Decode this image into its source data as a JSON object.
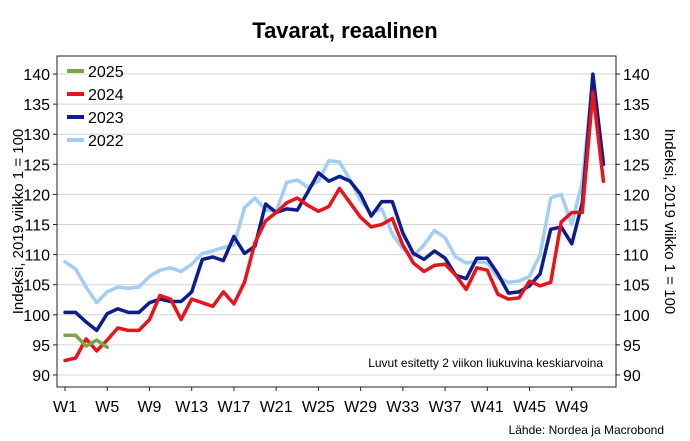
{
  "chart_data": {
    "type": "line",
    "title": "Tavarat, reaalinen",
    "ylabel_left": "Indeksi, 2019 viikko 1 = 100",
    "ylabel_right": "Indeksi, 2019 viikko 1 = 100",
    "ylim": [
      88,
      143
    ],
    "yticks": [
      90,
      95,
      100,
      105,
      110,
      115,
      120,
      125,
      130,
      135,
      140
    ],
    "xlim": [
      1,
      53
    ],
    "xticks": [
      {
        "value": 1,
        "label": "W1"
      },
      {
        "value": 5,
        "label": "W5"
      },
      {
        "value": 9,
        "label": "W9"
      },
      {
        "value": 13,
        "label": "W13"
      },
      {
        "value": 17,
        "label": "W17"
      },
      {
        "value": 21,
        "label": "W21"
      },
      {
        "value": 25,
        "label": "W25"
      },
      {
        "value": 29,
        "label": "W29"
      },
      {
        "value": 33,
        "label": "W33"
      },
      {
        "value": 37,
        "label": "W37"
      },
      {
        "value": 41,
        "label": "W41"
      },
      {
        "value": 45,
        "label": "W45"
      },
      {
        "value": 49,
        "label": "W49"
      }
    ],
    "note": "Luvut esitetty 2 viikon liukuvina keskiarvoina",
    "source": "Lähde: Nordea ja Macrobond",
    "series": [
      {
        "name": "2025",
        "color": "#7aa64a",
        "x": [
          1,
          2,
          3,
          4,
          5
        ],
        "values": [
          96.6,
          96.6,
          94.8,
          95.8,
          94.6
        ]
      },
      {
        "name": "2024",
        "color": "#e8141b",
        "x": [
          1,
          2,
          3,
          4,
          5,
          6,
          7,
          8,
          9,
          10,
          11,
          12,
          13,
          14,
          15,
          16,
          17,
          18,
          19,
          20,
          21,
          22,
          23,
          24,
          25,
          26,
          27,
          28,
          29,
          30,
          31,
          32,
          33,
          34,
          35,
          36,
          37,
          38,
          39,
          40,
          41,
          42,
          43,
          44,
          45,
          46,
          47,
          48,
          49,
          50,
          51,
          52
        ],
        "values": [
          92.4,
          92.8,
          96.0,
          94.0,
          95.8,
          97.8,
          97.4,
          97.4,
          99.2,
          103.2,
          102.6,
          99.2,
          102.6,
          102.0,
          101.4,
          103.8,
          101.8,
          105.4,
          112.0,
          115.6,
          117.0,
          118.6,
          119.4,
          118.2,
          117.2,
          118.0,
          121.0,
          118.6,
          116.2,
          114.6,
          115.0,
          116.0,
          111.6,
          108.6,
          107.2,
          108.2,
          108.4,
          106.6,
          104.2,
          107.8,
          107.4,
          103.4,
          102.6,
          102.8,
          105.6,
          104.8,
          105.4,
          115.4,
          117.0,
          117.0,
          137.0,
          122.2
        ]
      },
      {
        "name": "2023",
        "color": "#0d1e8c",
        "x": [
          1,
          2,
          3,
          4,
          5,
          6,
          7,
          8,
          9,
          10,
          11,
          12,
          13,
          14,
          15,
          16,
          17,
          18,
          19,
          20,
          21,
          22,
          23,
          24,
          25,
          26,
          27,
          28,
          29,
          30,
          31,
          32,
          33,
          34,
          35,
          36,
          37,
          38,
          39,
          40,
          41,
          42,
          43,
          44,
          45,
          46,
          47,
          48,
          49,
          50,
          51,
          52
        ],
        "values": [
          100.4,
          100.4,
          98.8,
          97.4,
          100.2,
          101.0,
          100.4,
          100.4,
          102.0,
          102.6,
          102.2,
          102.2,
          103.8,
          109.2,
          109.6,
          109.0,
          113.0,
          110.2,
          111.4,
          118.4,
          117.0,
          117.6,
          117.4,
          120.4,
          123.6,
          122.2,
          123.0,
          122.2,
          120.0,
          116.4,
          118.8,
          118.8,
          113.6,
          110.2,
          109.2,
          110.6,
          109.4,
          106.6,
          106.0,
          109.4,
          109.4,
          106.8,
          103.6,
          103.8,
          104.8,
          106.8,
          114.2,
          114.6,
          111.8,
          118.6,
          140.0,
          125.0
        ]
      },
      {
        "name": "2022",
        "color": "#a3cdf4",
        "x": [
          1,
          2,
          3,
          4,
          5,
          6,
          7,
          8,
          9,
          10,
          11,
          12,
          13,
          14,
          15,
          16,
          17,
          18,
          19,
          20,
          21,
          22,
          23,
          24,
          25,
          26,
          27,
          28,
          29,
          30,
          31,
          32,
          33,
          34,
          35,
          36,
          37,
          38,
          39,
          40,
          41,
          42,
          43,
          44,
          45,
          46,
          47,
          48,
          49,
          50,
          51,
          52
        ],
        "values": [
          108.8,
          107.6,
          104.6,
          102.0,
          103.8,
          104.6,
          104.4,
          104.6,
          106.4,
          107.4,
          107.8,
          107.2,
          108.4,
          110.2,
          110.6,
          111.2,
          111.6,
          117.8,
          119.4,
          117.4,
          117.2,
          122.0,
          122.4,
          121.2,
          122.2,
          125.6,
          125.4,
          122.4,
          119.0,
          116.8,
          117.6,
          113.4,
          111.0,
          109.8,
          111.6,
          114.0,
          112.8,
          109.6,
          108.6,
          108.8,
          108.6,
          106.2,
          105.4,
          105.6,
          106.4,
          110.0,
          119.4,
          120.0,
          115.0,
          122.2,
          139.4,
          125.6
        ]
      }
    ]
  }
}
